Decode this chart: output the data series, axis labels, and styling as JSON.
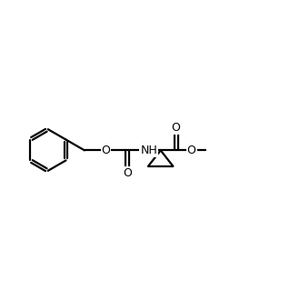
{
  "bg_color": "#ffffff",
  "line_color": "#000000",
  "line_width": 1.6,
  "font_size": 9.0,
  "figsize": [
    3.3,
    3.3
  ],
  "dpi": 100,
  "xlim": [
    0.2,
    8.8
  ],
  "ylim": [
    3.2,
    7.2
  ]
}
